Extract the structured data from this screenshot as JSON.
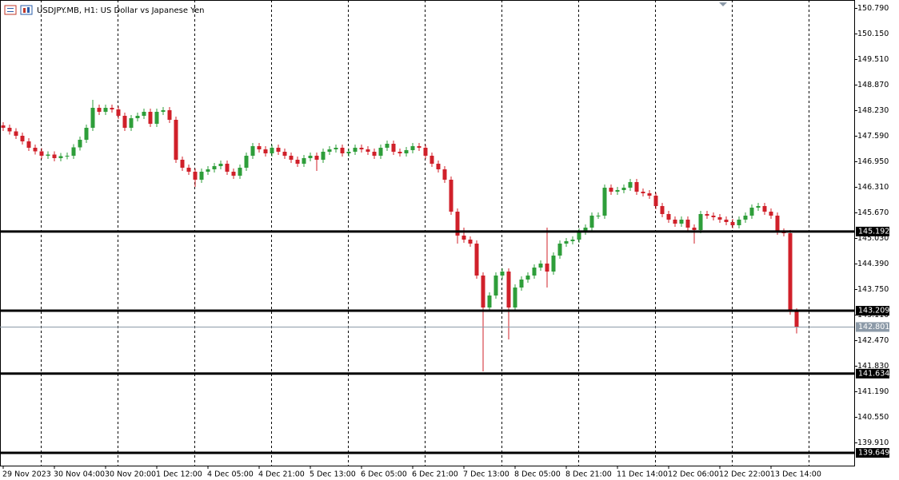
{
  "chart_data": {
    "type": "candlestick",
    "title": "USDJPY.MB, H1:  US Dollar vs Japanese Yen",
    "categories": [
      "29 Nov 2023",
      null,
      null,
      null,
      null,
      null,
      null,
      null,
      "30 Nov 04:00",
      null,
      null,
      null,
      null,
      null,
      null,
      null,
      "30 Nov 20:00",
      null,
      null,
      null,
      null,
      null,
      null,
      null,
      "1 Dec 12:00",
      null,
      null,
      null,
      null,
      null,
      null,
      null,
      "4 Dec 05:00",
      null,
      null,
      null,
      null,
      null,
      null,
      null,
      "4 Dec 21:00",
      null,
      null,
      null,
      null,
      null,
      null,
      null,
      "5 Dec 13:00",
      null,
      null,
      null,
      null,
      null,
      null,
      null,
      "6 Dec 05:00",
      null,
      null,
      null,
      null,
      null,
      null,
      null,
      "6 Dec 21:00",
      null,
      null,
      null,
      null,
      null,
      null,
      null,
      "7 Dec 13:00",
      null,
      null,
      null,
      null,
      null,
      null,
      null,
      "8 Dec 05:00",
      null,
      null,
      null,
      null,
      null,
      null,
      null,
      "8 Dec 21:00",
      null,
      null,
      null,
      null,
      null,
      null,
      null,
      "11 Dec 14:00",
      null,
      null,
      null,
      null,
      null,
      null,
      null,
      "12 Dec 06:00",
      null,
      null,
      null,
      null,
      null,
      null,
      null,
      "12 Dec 22:00",
      null,
      null,
      null,
      null,
      null,
      null,
      null,
      "13 Dec 14:00",
      null,
      null,
      null,
      null
    ],
    "open": [
      147.85,
      147.79,
      147.7,
      147.59,
      147.45,
      147.29,
      147.2,
      147.09,
      147.12,
      147.03,
      147.08,
      147.09,
      147.3,
      147.49,
      147.79,
      148.29,
      148.19,
      148.29,
      148.25,
      148.09,
      147.79,
      148.03,
      148.09,
      148.19,
      147.89,
      148.19,
      148.23,
      147.99,
      146.99,
      146.79,
      146.69,
      146.49,
      146.69,
      146.75,
      146.83,
      146.89,
      146.69,
      146.59,
      146.79,
      147.09,
      147.33,
      147.25,
      147.15,
      147.29,
      147.19,
      147.09,
      146.99,
      146.89,
      147.03,
      147.09,
      146.99,
      147.19,
      147.25,
      147.29,
      147.15,
      147.19,
      147.29,
      147.25,
      147.19,
      147.09,
      147.29,
      147.39,
      147.19,
      147.15,
      147.23,
      147.33,
      147.29,
      147.09,
      146.89,
      146.75,
      146.49,
      145.69,
      145.09,
      144.99,
      144.89,
      144.09,
      143.29,
      143.59,
      144.09,
      144.19,
      143.29,
      143.79,
      143.99,
      144.09,
      144.29,
      144.39,
      144.19,
      144.59,
      144.89,
      144.95,
      144.99,
      145.19,
      145.29,
      145.59,
      145.59,
      146.29,
      146.19,
      146.23,
      146.29,
      146.43,
      146.19,
      146.15,
      146.09,
      145.83,
      145.63,
      145.49,
      145.39,
      145.49,
      145.29,
      145.23,
      145.63,
      145.59,
      145.55,
      145.49,
      145.43,
      145.35,
      145.49,
      145.59,
      145.79,
      145.83,
      145.69,
      145.59,
      145.19,
      145.15,
      143.19
    ],
    "high": [
      147.93,
      147.87,
      147.78,
      147.67,
      147.53,
      147.37,
      147.28,
      147.2,
      147.2,
      147.16,
      147.17,
      147.38,
      147.57,
      147.87,
      148.49,
      148.37,
      148.37,
      148.37,
      148.33,
      148.17,
      148.11,
      148.17,
      148.27,
      148.27,
      148.27,
      148.31,
      148.31,
      148.07,
      147.07,
      146.87,
      146.77,
      146.77,
      146.83,
      146.91,
      146.97,
      146.97,
      146.77,
      146.87,
      147.17,
      147.41,
      147.41,
      147.33,
      147.37,
      147.37,
      147.27,
      147.17,
      147.07,
      147.11,
      147.17,
      147.17,
      147.27,
      147.33,
      147.37,
      147.37,
      147.27,
      147.37,
      147.37,
      147.33,
      147.27,
      147.37,
      147.47,
      147.47,
      147.27,
      147.31,
      147.41,
      147.41,
      147.37,
      147.17,
      146.97,
      146.83,
      146.57,
      145.77,
      145.29,
      145.07,
      144.97,
      144.17,
      143.67,
      144.17,
      144.27,
      144.27,
      143.87,
      144.07,
      144.17,
      144.37,
      144.47,
      145.29,
      144.67,
      144.97,
      145.03,
      145.07,
      145.27,
      145.37,
      145.67,
      145.67,
      146.37,
      146.37,
      146.31,
      146.37,
      146.51,
      146.51,
      146.27,
      146.23,
      146.17,
      145.91,
      145.71,
      145.57,
      145.57,
      145.57,
      145.37,
      145.71,
      145.71,
      145.67,
      145.63,
      145.57,
      145.51,
      145.57,
      145.67,
      145.87,
      145.91,
      145.91,
      145.77,
      145.67,
      145.27,
      145.23,
      143.27
    ],
    "low": [
      147.71,
      147.62,
      147.51,
      147.37,
      147.21,
      147.12,
      147.01,
      147.01,
      146.95,
      146.95,
      147.0,
      147.01,
      147.22,
      147.41,
      147.71,
      148.11,
      148.11,
      148.17,
      148.01,
      147.71,
      147.71,
      147.95,
      148.01,
      147.81,
      147.81,
      148.11,
      147.91,
      146.91,
      146.71,
      146.61,
      146.31,
      146.41,
      146.61,
      146.67,
      146.75,
      146.61,
      146.51,
      146.51,
      146.71,
      147.01,
      147.17,
      147.07,
      147.07,
      147.11,
      147.01,
      146.91,
      146.81,
      146.81,
      146.95,
      146.71,
      146.91,
      147.11,
      147.17,
      147.07,
      147.07,
      147.11,
      147.17,
      147.11,
      147.01,
      147.01,
      147.21,
      147.11,
      147.07,
      147.07,
      147.15,
      147.21,
      147.01,
      146.81,
      146.67,
      146.41,
      145.61,
      144.89,
      144.91,
      144.81,
      144.01,
      141.69,
      143.21,
      143.51,
      144.01,
      142.49,
      143.21,
      143.71,
      143.91,
      144.01,
      144.21,
      143.79,
      144.11,
      144.51,
      144.81,
      144.87,
      144.91,
      145.11,
      145.21,
      145.51,
      145.51,
      146.11,
      146.11,
      146.15,
      146.21,
      146.11,
      146.07,
      146.01,
      145.75,
      145.55,
      145.41,
      145.31,
      145.31,
      145.21,
      144.89,
      145.15,
      145.51,
      145.47,
      145.41,
      145.35,
      145.27,
      145.27,
      145.41,
      145.51,
      145.71,
      145.61,
      145.51,
      145.11,
      145.07,
      143.11,
      142.64
    ],
    "close": [
      147.79,
      147.7,
      147.59,
      147.45,
      147.29,
      147.2,
      147.09,
      147.12,
      147.03,
      147.08,
      147.09,
      147.3,
      147.49,
      147.79,
      148.29,
      148.19,
      148.29,
      148.25,
      148.09,
      147.79,
      148.03,
      148.09,
      148.19,
      147.89,
      148.19,
      148.23,
      147.99,
      146.99,
      146.79,
      146.69,
      146.49,
      146.69,
      146.75,
      146.83,
      146.89,
      146.69,
      146.59,
      146.79,
      147.09,
      147.33,
      147.25,
      147.15,
      147.29,
      147.19,
      147.09,
      146.99,
      146.89,
      147.03,
      147.09,
      146.99,
      147.19,
      147.25,
      147.29,
      147.15,
      147.19,
      147.29,
      147.25,
      147.19,
      147.09,
      147.29,
      147.39,
      147.19,
      147.15,
      147.23,
      147.33,
      147.29,
      147.09,
      146.89,
      146.75,
      146.49,
      145.69,
      145.09,
      144.99,
      144.89,
      144.09,
      143.29,
      143.59,
      144.09,
      144.19,
      143.29,
      143.79,
      143.99,
      144.09,
      144.29,
      144.39,
      144.19,
      144.59,
      144.89,
      144.95,
      144.99,
      145.19,
      145.29,
      145.59,
      145.59,
      146.29,
      146.19,
      146.23,
      146.29,
      146.43,
      146.19,
      146.15,
      146.09,
      145.83,
      145.63,
      145.49,
      145.39,
      145.49,
      145.29,
      145.23,
      145.63,
      145.59,
      145.55,
      145.49,
      145.43,
      145.35,
      145.49,
      145.59,
      145.79,
      145.83,
      145.69,
      145.59,
      145.19,
      145.15,
      143.19,
      142.801
    ],
    "up_color": "#2e9e3a",
    "down_color": "#d0202a",
    "ylim": [
      139.33,
      150.99
    ],
    "yticks": [
      {
        "value": 150.79,
        "label": "150.790"
      },
      {
        "value": 150.15,
        "label": "150.150"
      },
      {
        "value": 149.51,
        "label": "149.510"
      },
      {
        "value": 148.87,
        "label": "148.870"
      },
      {
        "value": 148.23,
        "label": "148.230"
      },
      {
        "value": 147.59,
        "label": "147.590"
      },
      {
        "value": 146.95,
        "label": "146.950"
      },
      {
        "value": 146.31,
        "label": "146.310"
      },
      {
        "value": 145.67,
        "label": "145.670"
      },
      {
        "value": 145.03,
        "label": "145.030"
      },
      {
        "value": 144.39,
        "label": "144.390"
      },
      {
        "value": 143.75,
        "label": "143.750"
      },
      {
        "value": 143.11,
        "label": "143.110"
      },
      {
        "value": 142.47,
        "label": "142.470"
      },
      {
        "value": 141.83,
        "label": "141.830"
      },
      {
        "value": 141.19,
        "label": "141.190"
      },
      {
        "value": 140.55,
        "label": "140.550"
      },
      {
        "value": 139.91,
        "label": "139.910"
      }
    ],
    "levels": [
      145.192,
      143.209,
      141.634,
      139.649
    ],
    "level_color": "#000000",
    "current_price": 142.801,
    "current_color": "#8c9aa8",
    "grid": true
  }
}
